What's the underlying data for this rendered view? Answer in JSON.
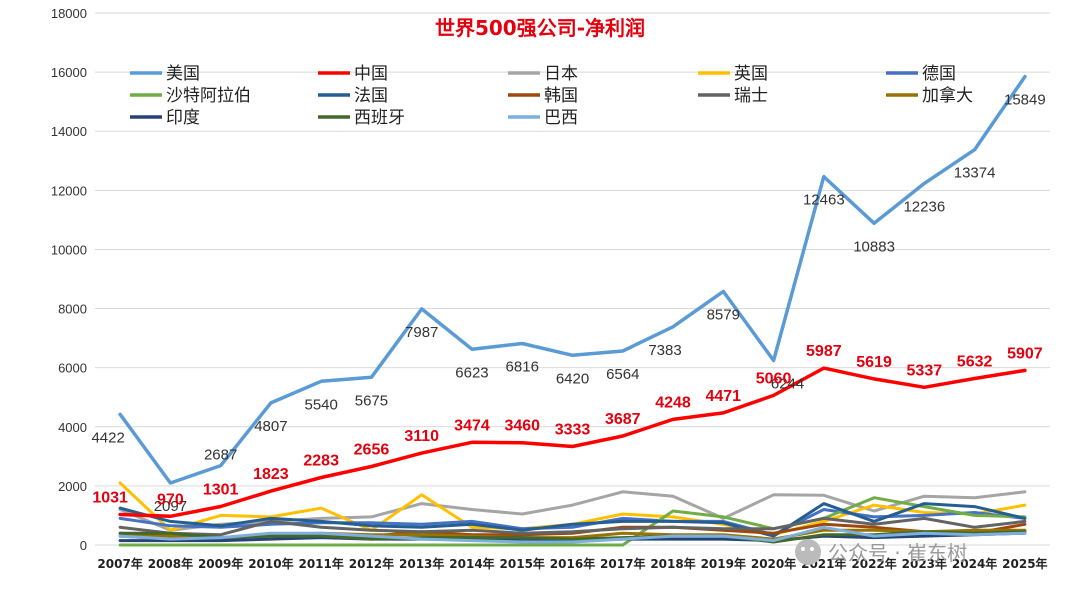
{
  "chart_data": {
    "type": "line",
    "title": "世界500强公司-净利润",
    "ylim": [
      0,
      18000
    ],
    "yticks": [
      0,
      2000,
      4000,
      6000,
      8000,
      10000,
      12000,
      14000,
      16000,
      18000
    ],
    "grid": true,
    "legend_position": "top",
    "categories": [
      "2007年",
      "2008年",
      "2009年",
      "2010年",
      "2011年",
      "2012年",
      "2013年",
      "2014年",
      "2015年",
      "2016年",
      "2017年",
      "2018年",
      "2019年",
      "2020年",
      "2021年",
      "2022年",
      "2023年",
      "2024年",
      "2025年"
    ],
    "series": [
      {
        "name": "美国",
        "color": "#5b9bd5",
        "labeled": "us",
        "values": [
          4422,
          2097,
          2687,
          4807,
          5540,
          5675,
          7987,
          6623,
          6816,
          6420,
          6564,
          7383,
          8579,
          6244,
          12463,
          10883,
          12236,
          13374,
          15849
        ]
      },
      {
        "name": "中国",
        "color": "#ff0000",
        "labeled": "cn",
        "values": [
          1031,
          970,
          1301,
          1823,
          2283,
          2656,
          3110,
          3474,
          3460,
          3333,
          3687,
          4248,
          4471,
          5060,
          5987,
          5619,
          5337,
          5632,
          5907
        ]
      },
      {
        "name": "日本",
        "color": "#a5a5a5",
        "values": [
          1200,
          500,
          700,
          800,
          900,
          950,
          1400,
          1200,
          1050,
          1350,
          1800,
          1650,
          900,
          1700,
          1680,
          1150,
          1650,
          1600,
          1800
        ]
      },
      {
        "name": "英国",
        "color": "#ffc000",
        "values": [
          2100,
          500,
          1000,
          950,
          1250,
          500,
          1700,
          600,
          550,
          700,
          1050,
          950,
          700,
          350,
          800,
          1350,
          1100,
          1050,
          1350
        ]
      },
      {
        "name": "德国",
        "color": "#4472c4",
        "values": [
          900,
          650,
          600,
          700,
          750,
          750,
          700,
          800,
          550,
          600,
          900,
          800,
          800,
          350,
          1200,
          950,
          1000,
          1100,
          900
        ]
      },
      {
        "name": "沙特阿拉伯",
        "color": "#70ad47",
        "values": [
          0,
          0,
          0,
          0,
          0,
          0,
          0,
          0,
          0,
          0,
          0,
          1150,
          950,
          550,
          900,
          1600,
          1300,
          1000,
          950
        ]
      },
      {
        "name": "法国",
        "color": "#255e91",
        "values": [
          1250,
          800,
          650,
          900,
          800,
          650,
          600,
          700,
          500,
          700,
          800,
          800,
          750,
          300,
          1400,
          800,
          1400,
          1300,
          900
        ]
      },
      {
        "name": "韩国",
        "color": "#9e480e",
        "values": [
          300,
          200,
          250,
          300,
          350,
          300,
          450,
          350,
          350,
          400,
          600,
          600,
          500,
          400,
          700,
          600,
          450,
          400,
          700
        ]
      },
      {
        "name": "瑞士",
        "color": "#636363",
        "values": [
          600,
          400,
          350,
          800,
          600,
          500,
          450,
          500,
          400,
          450,
          550,
          600,
          550,
          550,
          900,
          700,
          900,
          600,
          800
        ]
      },
      {
        "name": "加拿大",
        "color": "#997300",
        "values": [
          400,
          300,
          250,
          350,
          400,
          350,
          350,
          300,
          250,
          250,
          400,
          350,
          350,
          200,
          500,
          500,
          450,
          500,
          500
        ]
      },
      {
        "name": "印度",
        "color": "#264478",
        "values": [
          150,
          150,
          150,
          200,
          250,
          200,
          200,
          200,
          150,
          150,
          200,
          200,
          200,
          150,
          300,
          250,
          300,
          350,
          400
        ]
      },
      {
        "name": "西班牙",
        "color": "#43682b",
        "values": [
          400,
          400,
          250,
          300,
          300,
          200,
          250,
          250,
          250,
          200,
          250,
          300,
          300,
          100,
          350,
          350,
          450,
          400,
          450
        ]
      },
      {
        "name": "巴西",
        "color": "#7cafdd",
        "values": [
          300,
          200,
          250,
          400,
          400,
          300,
          200,
          150,
          100,
          100,
          200,
          300,
          300,
          150,
          600,
          300,
          400,
          350,
          400
        ]
      }
    ]
  },
  "watermark": "公众号 · 崔东树"
}
